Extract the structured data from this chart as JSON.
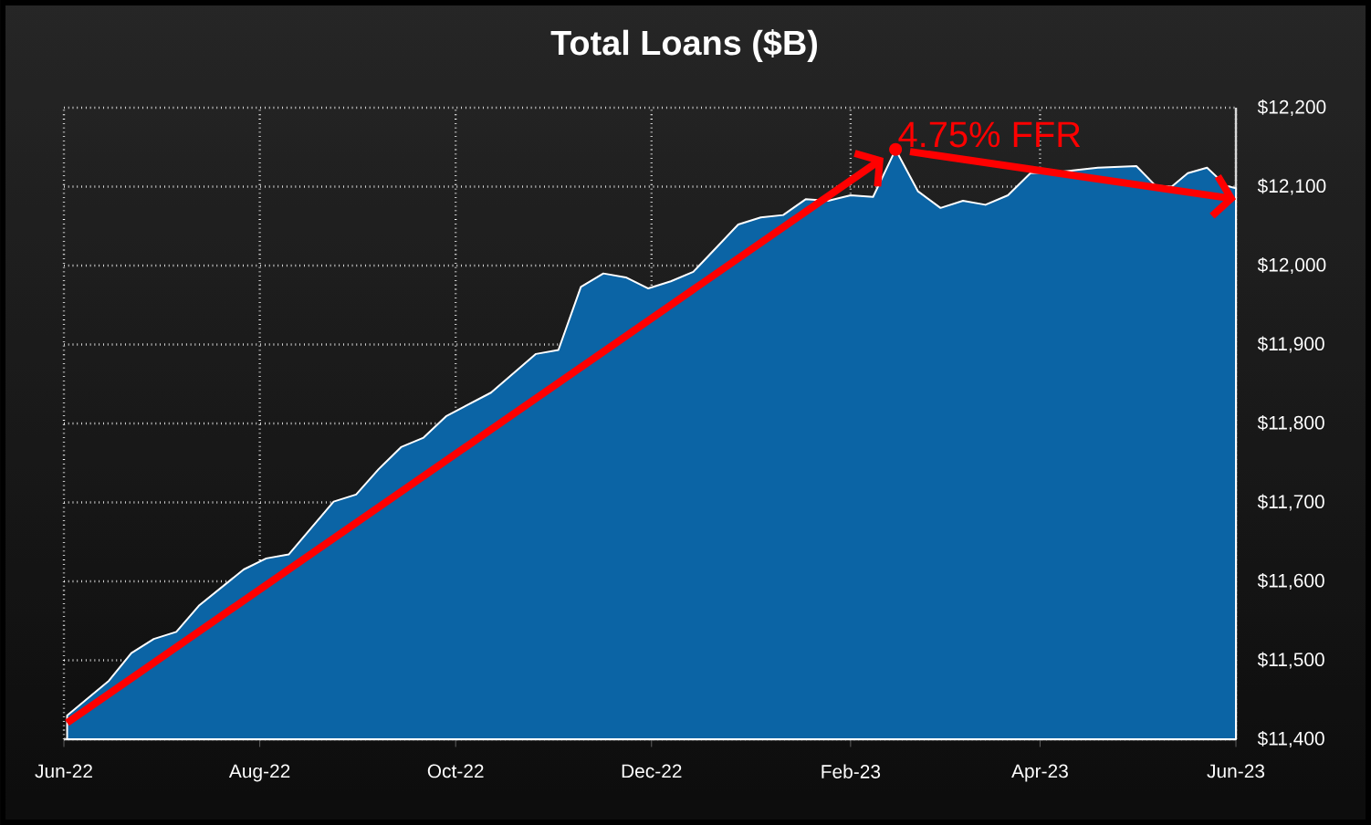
{
  "chart_data": {
    "type": "area",
    "title": "Total Loans ($B)",
    "x": [
      "2022-06-02",
      "2022-06-15",
      "2022-06-22",
      "2022-06-29",
      "2022-07-06",
      "2022-07-13",
      "2022-07-27",
      "2022-08-03",
      "2022-08-10",
      "2022-08-24",
      "2022-08-31",
      "2022-09-07",
      "2022-09-14",
      "2022-09-21",
      "2022-09-28",
      "2022-10-12",
      "2022-10-26",
      "2022-11-02",
      "2022-11-09",
      "2022-11-16",
      "2022-11-23",
      "2022-11-30",
      "2022-12-07",
      "2022-12-14",
      "2022-12-21",
      "2022-12-28",
      "2023-01-04",
      "2023-01-11",
      "2023-01-18",
      "2023-01-25",
      "2023-02-01",
      "2023-02-08",
      "2023-02-15",
      "2023-02-22",
      "2023-03-01",
      "2023-03-08",
      "2023-03-15",
      "2023-03-22",
      "2023-03-29",
      "2023-04-08",
      "2023-04-19",
      "2023-05-01",
      "2023-05-07",
      "2023-05-12",
      "2023-05-17",
      "2023-05-23",
      "2023-05-29",
      "2023-06-01"
    ],
    "series": [
      {
        "color": "#0b64a5",
        "values": [
          11430,
          11474,
          11509,
          11527,
          11536,
          11569,
          11615,
          11629,
          11634,
          11701,
          11710,
          11742,
          11770,
          11782,
          11809,
          11839,
          11888,
          11893,
          11973,
          11990,
          11985,
          11971,
          11980,
          11992,
          12022,
          12052,
          12061,
          12064,
          12084,
          12082,
          12089,
          12087,
          12147,
          12094,
          12073,
          12082,
          12077,
          12089,
          12117,
          12119,
          12124,
          12126,
          12101,
          12100,
          12117,
          12124,
          12101,
          12098
        ]
      }
    ],
    "xlim": [
      "2022-06-01",
      "2023-06-01"
    ],
    "xticks": [
      {
        "value": "2022-06-01",
        "label": "Jun-22"
      },
      {
        "value": "2022-08-01",
        "label": "Aug-22"
      },
      {
        "value": "2022-10-01",
        "label": "Oct-22"
      },
      {
        "value": "2022-12-01",
        "label": "Dec-22"
      },
      {
        "value": "2023-02-01",
        "label": "Feb-23"
      },
      {
        "value": "2023-04-01",
        "label": "Apr-23"
      },
      {
        "value": "2023-06-01",
        "label": "Jun-23"
      }
    ],
    "ylim": [
      11400,
      12200
    ],
    "yticks": [
      {
        "value": 11400,
        "label": "$11,400"
      },
      {
        "value": 11500,
        "label": "$11,500"
      },
      {
        "value": 11600,
        "label": "$11,600"
      },
      {
        "value": 11700,
        "label": "$11,700"
      },
      {
        "value": 11800,
        "label": "$11,800"
      },
      {
        "value": 11900,
        "label": "$11,900"
      },
      {
        "value": 12000,
        "label": "$12,000"
      },
      {
        "value": 12100,
        "label": "$12,100"
      },
      {
        "value": 12200,
        "label": "$12,200"
      }
    ],
    "annotations": [
      {
        "text": "4.75% FFR",
        "x": "2023-02-15",
        "y": 12147
      }
    ],
    "grid": true,
    "marker": "none"
  }
}
